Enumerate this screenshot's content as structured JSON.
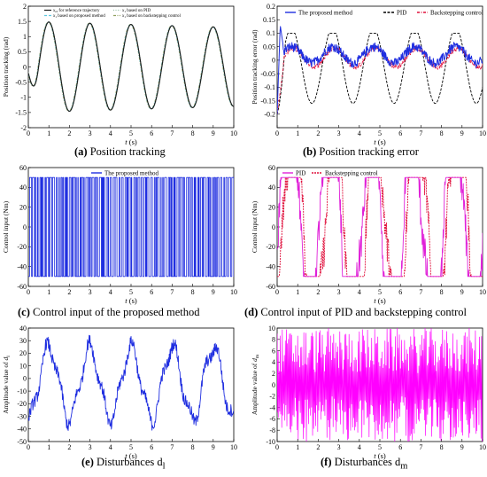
{
  "colors": {
    "proposed": "#1f2ee0",
    "pid": "#000000",
    "backstepping": "#e0103c",
    "pid_panel_d": "#e020d8",
    "dm": "#ff00ff",
    "reference": "#1a1a1a",
    "pid_trace_a": "#9ac0a8",
    "proposed_trace_a": "#60c8e0",
    "backstepping_trace_a": "#90a060"
  },
  "captions": {
    "a": {
      "tag": "(a)",
      "text": " Position tracking"
    },
    "b": {
      "tag": "(b)",
      "text": " Position tracking error"
    },
    "c": {
      "tag": "(c)",
      "text": " Control input of the proposed method"
    },
    "d": {
      "tag": "(d)",
      "text": " Control input of PID and backstepping control"
    },
    "e": {
      "tag": "(e)",
      "text": " Disturbances d",
      "sub": "l"
    },
    "f": {
      "tag": "(f)",
      "text": " Disturbances d",
      "sub": "m"
    }
  },
  "chart_data": [
    {
      "id": "a",
      "type": "line",
      "xlabel": "t (s)",
      "ylabel": "Position tracking (rad)",
      "xlim": [
        0,
        10
      ],
      "ylim": [
        -2,
        2
      ],
      "xticks": [
        0,
        1,
        2,
        3,
        4,
        5,
        6,
        7,
        8,
        9,
        10
      ],
      "yticks": [
        -2,
        -1.5,
        -1,
        -0.5,
        0,
        0.5,
        1,
        1.5,
        2
      ],
      "yticklabels": [
        "-2",
        "-1.5",
        "-1",
        "-0.5",
        "0",
        "0.5",
        "1",
        "1.5",
        "2"
      ],
      "legend_position": "top",
      "legend": [
        {
          "label": "x_rd for reference trajectory",
          "style": "solid"
        },
        {
          "label": "x_1 based on PID",
          "style": "dotted"
        },
        {
          "label": "x_1 based on proposed method",
          "style": "dashed"
        },
        {
          "label": "x_1 based on backstepping control",
          "style": "dashdot"
        }
      ],
      "series_model": {
        "amplitude": [
          1.5,
          1.3
        ],
        "period": 2.0,
        "phase_shift": 0.5,
        "initial": -0.2
      },
      "annotations": {
        "peaks_approx": [
          [
            1.1,
            1.48
          ],
          [
            2.1,
            -1.45
          ],
          [
            3.1,
            1.45
          ],
          [
            4.1,
            -1.4
          ],
          [
            5.1,
            1.4
          ],
          [
            6.1,
            -1.35
          ],
          [
            7.1,
            1.35
          ],
          [
            8.1,
            -1.3
          ],
          [
            9.1,
            1.3
          ]
        ]
      }
    },
    {
      "id": "b",
      "type": "line",
      "xlabel": "t (s)",
      "ylabel": "Position tracking error (rad)",
      "xlim": [
        0,
        10
      ],
      "ylim": [
        -0.25,
        0.2
      ],
      "xticks": [
        0,
        1,
        2,
        3,
        4,
        5,
        6,
        7,
        8,
        9,
        10
      ],
      "yticks": [
        -0.25,
        -0.2,
        -0.15,
        -0.1,
        -0.05,
        0,
        0.05,
        0.1,
        0.15,
        0.2
      ],
      "yticklabels": [
        "",
        "-0.2",
        "-0.15",
        "-0.1",
        "-0.05",
        "0",
        "0.05",
        "0.1",
        "0.15",
        "0.2"
      ],
      "legend_position": "top",
      "series": [
        {
          "name": "The proposed method",
          "amplitude": 0.035,
          "offset": 0.02,
          "peak_start": 0.13
        },
        {
          "name": "PID",
          "amplitude": 0.12,
          "offset": -0.02,
          "min": -0.23,
          "max": 0.1
        },
        {
          "name": "Backstepping control",
          "amplitude": 0.04,
          "offset": 0.0,
          "start": -0.2
        }
      ]
    },
    {
      "id": "c",
      "type": "line",
      "xlabel": "t (s)",
      "ylabel": "Control input (Nm)",
      "xlim": [
        0,
        10
      ],
      "ylim": [
        -60,
        60
      ],
      "xticks": [
        0,
        1,
        2,
        3,
        4,
        5,
        6,
        7,
        8,
        9,
        10
      ],
      "yticks": [
        -60,
        -40,
        -20,
        0,
        20,
        40,
        60
      ],
      "yticklabels": [
        "-60",
        "-40",
        "-20",
        "0",
        "20",
        "40",
        "60"
      ],
      "legend_position": "top",
      "series": [
        {
          "name": "The proposed method",
          "levels": [
            50,
            -50
          ],
          "switching": "bang-bang"
        }
      ]
    },
    {
      "id": "d",
      "type": "line",
      "xlabel": "t (s)",
      "ylabel": "Control input (Nm)",
      "xlim": [
        0,
        10
      ],
      "ylim": [
        -60,
        60
      ],
      "xticks": [
        0,
        1,
        2,
        3,
        4,
        5,
        6,
        7,
        8,
        9,
        10
      ],
      "yticks": [
        -60,
        -40,
        -20,
        0,
        20,
        40,
        60
      ],
      "yticklabels": [
        "-60",
        "-40",
        "-20",
        "0",
        "20",
        "40",
        "60"
      ],
      "legend_position": "top",
      "series": [
        {
          "name": "PID",
          "saturation": [
            -50,
            50
          ]
        },
        {
          "name": "Backstepping control",
          "saturation": [
            -50,
            50
          ]
        }
      ]
    },
    {
      "id": "e",
      "type": "line",
      "xlabel": "t (s)",
      "ylabel": "Amplitude value of d_l",
      "xlim": [
        0,
        10
      ],
      "ylim": [
        -50,
        40
      ],
      "xticks": [
        0,
        1,
        2,
        3,
        4,
        5,
        6,
        7,
        8,
        9,
        10
      ],
      "yticks": [
        -50,
        -40,
        -30,
        -20,
        -10,
        0,
        10,
        20,
        30,
        40
      ],
      "yticklabels": [
        "-50",
        "-40",
        "-30",
        "-20",
        "-10",
        "0",
        "10",
        "20",
        "30",
        "40"
      ],
      "series": [
        {
          "name": "d_l",
          "amplitude": 30,
          "period": 2.0,
          "range": [
            -42,
            35
          ]
        }
      ]
    },
    {
      "id": "f",
      "type": "line",
      "xlabel": "t (s)",
      "ylabel": "Amplitude value of d_m",
      "xlim": [
        0,
        10
      ],
      "ylim": [
        -10,
        10
      ],
      "xticks": [
        0,
        1,
        2,
        3,
        4,
        5,
        6,
        7,
        8,
        9,
        10
      ],
      "yticks": [
        -10,
        -8,
        -6,
        -4,
        -2,
        0,
        2,
        4,
        6,
        8,
        10
      ],
      "yticklabels": [
        "-10",
        "-8",
        "-6",
        "-4",
        "-2",
        "0",
        "2",
        "4",
        "6",
        "8",
        "10"
      ],
      "series": [
        {
          "name": "d_m",
          "range": [
            -10,
            10
          ],
          "oscillation": "high-frequency"
        }
      ]
    }
  ]
}
